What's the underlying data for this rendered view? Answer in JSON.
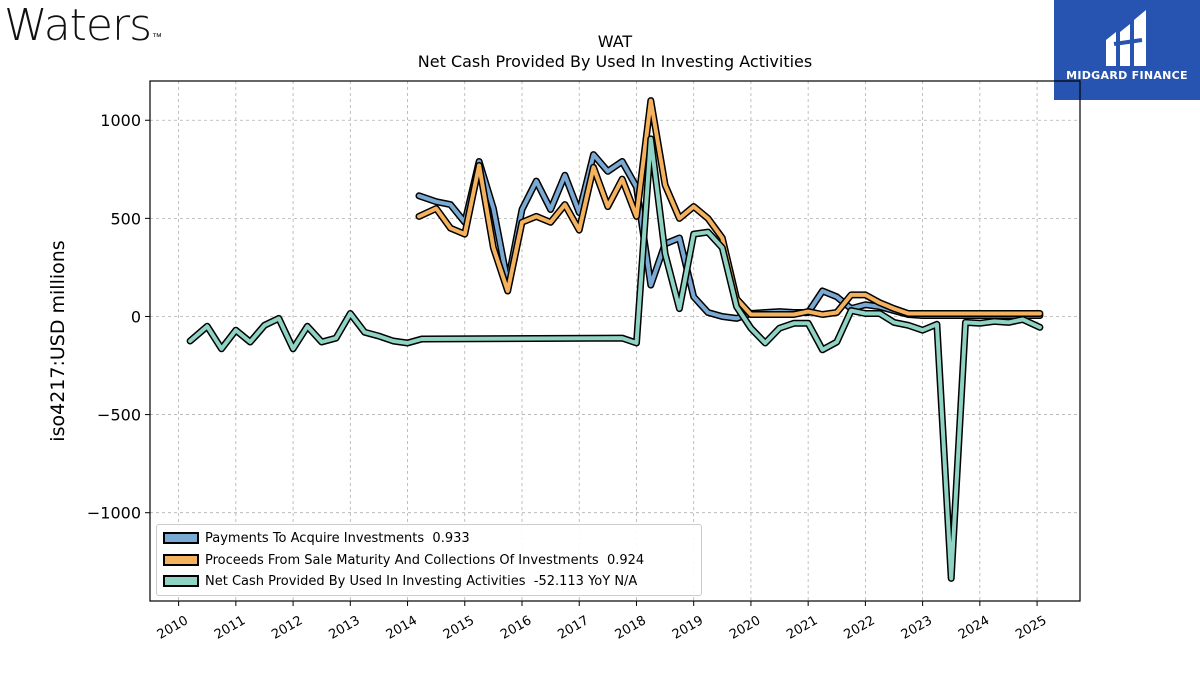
{
  "header": {
    "company_logo": "Waters",
    "company_logo_tm": "™",
    "brand_name": "MIDGARD FINANCE"
  },
  "chart_data": {
    "type": "line",
    "title": "WAT",
    "subtitle": "Net Cash Provided By Used In Investing Activities",
    "ylabel": "iso4217:USD  millions",
    "xlabel": "",
    "ylim": [
      -1450,
      1200
    ],
    "xlim": [
      2009.5,
      2025.75
    ],
    "yticks": [
      1000,
      500,
      0,
      -500,
      -1000
    ],
    "ytick_labels": [
      "1000",
      "500",
      "0",
      "−500",
      "−1000"
    ],
    "xticks": [
      2010,
      2011,
      2012,
      2013,
      2014,
      2015,
      2016,
      2017,
      2018,
      2019,
      2020,
      2021,
      2022,
      2023,
      2024,
      2025
    ],
    "grid": true,
    "legend_position": "lower-left",
    "series": [
      {
        "name": "Payments To Acquire Investments",
        "legend_value": "0.933",
        "color": "#7aaad4",
        "points": [
          [
            2014.2,
            615
          ],
          [
            2014.5,
            585
          ],
          [
            2014.75,
            570
          ],
          [
            2015.0,
            480
          ],
          [
            2015.25,
            790
          ],
          [
            2015.5,
            550
          ],
          [
            2015.75,
            170
          ],
          [
            2016.0,
            545
          ],
          [
            2016.25,
            690
          ],
          [
            2016.5,
            545
          ],
          [
            2016.75,
            720
          ],
          [
            2017.0,
            530
          ],
          [
            2017.25,
            825
          ],
          [
            2017.5,
            740
          ],
          [
            2017.75,
            790
          ],
          [
            2018.0,
            660
          ],
          [
            2018.25,
            160
          ],
          [
            2018.5,
            370
          ],
          [
            2018.75,
            400
          ],
          [
            2019.0,
            100
          ],
          [
            2019.25,
            20
          ],
          [
            2019.5,
            0
          ],
          [
            2019.75,
            -10
          ],
          [
            2020.0,
            15
          ],
          [
            2020.25,
            20
          ],
          [
            2020.5,
            25
          ],
          [
            2020.75,
            20
          ],
          [
            2021.0,
            20
          ],
          [
            2021.25,
            130
          ],
          [
            2021.5,
            100
          ],
          [
            2021.75,
            40
          ],
          [
            2022.0,
            60
          ],
          [
            2022.25,
            50
          ],
          [
            2022.5,
            30
          ],
          [
            2022.75,
            10
          ],
          [
            2023.0,
            5
          ],
          [
            2023.25,
            5
          ],
          [
            2023.5,
            5
          ],
          [
            2023.75,
            5
          ],
          [
            2024.0,
            5
          ],
          [
            2024.25,
            5
          ],
          [
            2024.5,
            5
          ],
          [
            2024.75,
            5
          ],
          [
            2025.05,
            5
          ]
        ]
      },
      {
        "name": "Proceeds From Sale Maturity And Collections Of Investments",
        "legend_value": "0.924",
        "color": "#f5b25e",
        "points": [
          [
            2014.2,
            510
          ],
          [
            2014.5,
            550
          ],
          [
            2014.75,
            450
          ],
          [
            2015.0,
            420
          ],
          [
            2015.25,
            770
          ],
          [
            2015.5,
            350
          ],
          [
            2015.75,
            130
          ],
          [
            2016.0,
            480
          ],
          [
            2016.25,
            510
          ],
          [
            2016.5,
            480
          ],
          [
            2016.75,
            570
          ],
          [
            2017.0,
            440
          ],
          [
            2017.25,
            760
          ],
          [
            2017.5,
            560
          ],
          [
            2017.75,
            700
          ],
          [
            2018.0,
            510
          ],
          [
            2018.25,
            1100
          ],
          [
            2018.5,
            670
          ],
          [
            2018.75,
            500
          ],
          [
            2019.0,
            560
          ],
          [
            2019.25,
            500
          ],
          [
            2019.5,
            400
          ],
          [
            2019.75,
            90
          ],
          [
            2020.0,
            10
          ],
          [
            2020.25,
            10
          ],
          [
            2020.5,
            10
          ],
          [
            2020.75,
            10
          ],
          [
            2021.0,
            25
          ],
          [
            2021.25,
            10
          ],
          [
            2021.5,
            20
          ],
          [
            2021.75,
            110
          ],
          [
            2022.0,
            110
          ],
          [
            2022.25,
            70
          ],
          [
            2022.5,
            40
          ],
          [
            2022.75,
            15
          ],
          [
            2023.0,
            15
          ],
          [
            2023.25,
            15
          ],
          [
            2023.5,
            15
          ],
          [
            2023.75,
            15
          ],
          [
            2024.0,
            15
          ],
          [
            2024.25,
            15
          ],
          [
            2024.5,
            15
          ],
          [
            2024.75,
            15
          ],
          [
            2025.05,
            15
          ]
        ]
      },
      {
        "name": "Net Cash Provided By Used In Investing Activities",
        "legend_value": "-52.113 YoY N/A",
        "color": "#8ed3c3",
        "points": [
          [
            2010.2,
            -125
          ],
          [
            2010.5,
            -50
          ],
          [
            2010.75,
            -165
          ],
          [
            2011.0,
            -70
          ],
          [
            2011.25,
            -130
          ],
          [
            2011.5,
            -45
          ],
          [
            2011.75,
            -10
          ],
          [
            2012.0,
            -165
          ],
          [
            2012.25,
            -50
          ],
          [
            2012.5,
            -130
          ],
          [
            2012.75,
            -110
          ],
          [
            2013.0,
            15
          ],
          [
            2013.25,
            -80
          ],
          [
            2013.5,
            -100
          ],
          [
            2013.75,
            -125
          ],
          [
            2014.0,
            -135
          ],
          [
            2014.25,
            -115
          ],
          [
            2017.75,
            -110
          ],
          [
            2018.0,
            -135
          ],
          [
            2018.25,
            905
          ],
          [
            2018.5,
            320
          ],
          [
            2018.75,
            40
          ],
          [
            2019.0,
            420
          ],
          [
            2019.25,
            430
          ],
          [
            2019.5,
            350
          ],
          [
            2019.75,
            50
          ],
          [
            2020.0,
            -60
          ],
          [
            2020.25,
            -135
          ],
          [
            2020.5,
            -60
          ],
          [
            2020.75,
            -35
          ],
          [
            2021.0,
            -35
          ],
          [
            2021.25,
            -170
          ],
          [
            2021.5,
            -130
          ],
          [
            2021.75,
            30
          ],
          [
            2022.0,
            15
          ],
          [
            2022.25,
            15
          ],
          [
            2022.5,
            -30
          ],
          [
            2022.75,
            -45
          ],
          [
            2023.0,
            -70
          ],
          [
            2023.25,
            -40
          ],
          [
            2023.5,
            -1335
          ],
          [
            2023.75,
            -30
          ],
          [
            2024.0,
            -35
          ],
          [
            2024.25,
            -25
          ],
          [
            2024.5,
            -30
          ],
          [
            2024.75,
            -15
          ],
          [
            2025.05,
            -55
          ]
        ]
      }
    ]
  }
}
